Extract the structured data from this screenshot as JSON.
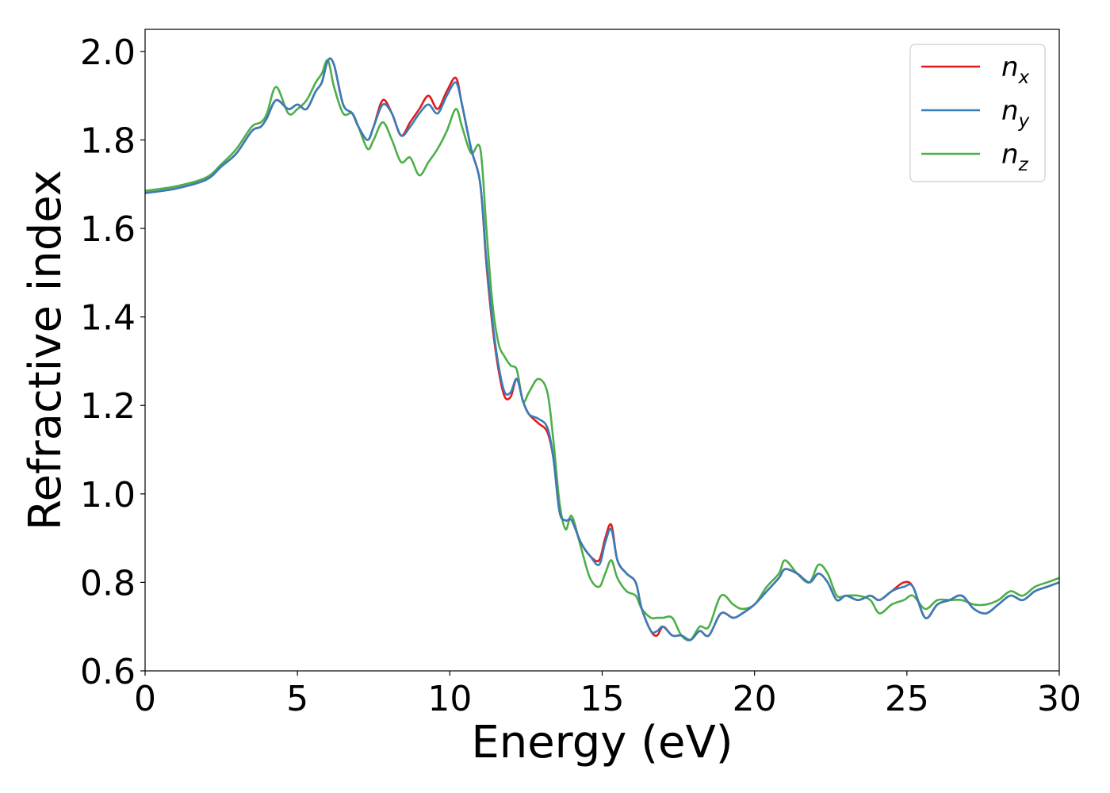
{
  "chart_data": {
    "type": "line",
    "title": "",
    "xlabel": "Energy (eV)",
    "ylabel": "Refractive index",
    "xlim": [
      0,
      30
    ],
    "ylim": [
      0.6,
      2.05
    ],
    "xticks": [
      0,
      5,
      10,
      15,
      20,
      25,
      30
    ],
    "yticks": [
      0.6,
      0.8,
      1.0,
      1.2,
      1.4,
      1.6,
      1.8,
      2.0
    ],
    "xtick_labels": [
      "0",
      "5",
      "10",
      "15",
      "20",
      "25",
      "30"
    ],
    "ytick_labels": [
      "0.6",
      "0.8",
      "1.0",
      "1.2",
      "1.4",
      "1.6",
      "1.8",
      "2.0"
    ],
    "grid": false,
    "legend": {
      "position": "top-right"
    },
    "series": [
      {
        "name": "n_x",
        "legend_main": "n",
        "legend_sub": "x",
        "color": "#e41a1c",
        "x": [
          0,
          1,
          2,
          2.5,
          3,
          3.5,
          3.8,
          4.0,
          4.3,
          4.7,
          5.0,
          5.3,
          5.6,
          5.8,
          6.0,
          6.2,
          6.5,
          6.8,
          7.0,
          7.3,
          7.5,
          7.8,
          8.1,
          8.4,
          8.7,
          9.0,
          9.3,
          9.6,
          9.9,
          10.2,
          10.4,
          10.7,
          11.0,
          11.2,
          11.4,
          11.6,
          11.8,
          12.0,
          12.2,
          12.4,
          12.6,
          12.9,
          13.2,
          13.4,
          13.6,
          13.8,
          14.0,
          14.3,
          14.6,
          14.9,
          15.1,
          15.3,
          15.5,
          15.8,
          16.1,
          16.3,
          16.6,
          16.8,
          17.0,
          17.3,
          17.6,
          17.9,
          18.2,
          18.5,
          18.9,
          19.3,
          19.6,
          20.0,
          20.4,
          20.8,
          21.0,
          21.4,
          21.8,
          22.1,
          22.4,
          22.7,
          23.0,
          23.4,
          23.8,
          24.1,
          24.5,
          24.9,
          25.2,
          25.6,
          26.0,
          26.4,
          26.8,
          27.2,
          27.6,
          28.0,
          28.4,
          28.8,
          29.2,
          29.6,
          30.0
        ],
        "y": [
          1.68,
          1.69,
          1.71,
          1.74,
          1.77,
          1.82,
          1.83,
          1.85,
          1.89,
          1.87,
          1.88,
          1.87,
          1.91,
          1.93,
          1.98,
          1.97,
          1.88,
          1.86,
          1.83,
          1.8,
          1.83,
          1.89,
          1.86,
          1.81,
          1.84,
          1.87,
          1.9,
          1.87,
          1.91,
          1.94,
          1.88,
          1.78,
          1.7,
          1.52,
          1.38,
          1.28,
          1.22,
          1.22,
          1.26,
          1.21,
          1.18,
          1.16,
          1.14,
          1.08,
          0.96,
          0.94,
          0.94,
          0.89,
          0.86,
          0.85,
          0.9,
          0.93,
          0.85,
          0.82,
          0.8,
          0.74,
          0.69,
          0.68,
          0.7,
          0.68,
          0.68,
          0.67,
          0.69,
          0.68,
          0.73,
          0.72,
          0.73,
          0.75,
          0.78,
          0.81,
          0.83,
          0.82,
          0.8,
          0.82,
          0.8,
          0.76,
          0.77,
          0.76,
          0.77,
          0.76,
          0.78,
          0.8,
          0.79,
          0.72,
          0.75,
          0.76,
          0.77,
          0.74,
          0.73,
          0.75,
          0.77,
          0.76,
          0.78,
          0.79,
          0.8
        ]
      },
      {
        "name": "n_y",
        "legend_main": "n",
        "legend_sub": "y",
        "color": "#377eb8",
        "x": [
          0,
          1,
          2,
          2.5,
          3,
          3.5,
          3.8,
          4.0,
          4.3,
          4.7,
          5.0,
          5.3,
          5.6,
          5.8,
          6.0,
          6.2,
          6.5,
          6.8,
          7.0,
          7.3,
          7.5,
          7.8,
          8.1,
          8.4,
          8.7,
          9.0,
          9.3,
          9.6,
          9.9,
          10.2,
          10.4,
          10.7,
          11.0,
          11.2,
          11.4,
          11.6,
          11.8,
          12.0,
          12.2,
          12.4,
          12.6,
          12.9,
          13.2,
          13.4,
          13.6,
          13.8,
          14.0,
          14.3,
          14.6,
          14.9,
          15.1,
          15.3,
          15.5,
          15.8,
          16.1,
          16.3,
          16.6,
          16.8,
          17.0,
          17.3,
          17.6,
          17.9,
          18.2,
          18.5,
          18.9,
          19.3,
          19.6,
          20.0,
          20.4,
          20.8,
          21.0,
          21.4,
          21.8,
          22.1,
          22.4,
          22.7,
          23.0,
          23.4,
          23.8,
          24.1,
          24.5,
          24.9,
          25.2,
          25.6,
          26.0,
          26.4,
          26.8,
          27.2,
          27.6,
          28.0,
          28.4,
          28.8,
          29.2,
          29.6,
          30.0
        ],
        "y": [
          1.68,
          1.69,
          1.71,
          1.74,
          1.77,
          1.82,
          1.83,
          1.85,
          1.89,
          1.87,
          1.88,
          1.87,
          1.91,
          1.93,
          1.98,
          1.97,
          1.88,
          1.86,
          1.83,
          1.8,
          1.83,
          1.88,
          1.86,
          1.81,
          1.83,
          1.86,
          1.88,
          1.86,
          1.9,
          1.93,
          1.88,
          1.78,
          1.7,
          1.53,
          1.39,
          1.29,
          1.23,
          1.23,
          1.26,
          1.21,
          1.18,
          1.17,
          1.15,
          1.08,
          0.96,
          0.94,
          0.94,
          0.89,
          0.86,
          0.84,
          0.89,
          0.92,
          0.85,
          0.82,
          0.8,
          0.74,
          0.69,
          0.69,
          0.7,
          0.68,
          0.68,
          0.67,
          0.69,
          0.68,
          0.73,
          0.72,
          0.73,
          0.75,
          0.78,
          0.81,
          0.83,
          0.82,
          0.8,
          0.82,
          0.8,
          0.76,
          0.77,
          0.76,
          0.77,
          0.76,
          0.78,
          0.79,
          0.79,
          0.72,
          0.75,
          0.76,
          0.77,
          0.74,
          0.73,
          0.75,
          0.77,
          0.76,
          0.78,
          0.79,
          0.8
        ]
      },
      {
        "name": "n_z",
        "legend_main": "n",
        "legend_sub": "z",
        "color": "#4daf4a",
        "x": [
          0,
          1,
          2,
          2.5,
          3,
          3.5,
          3.8,
          4.0,
          4.3,
          4.7,
          5.0,
          5.3,
          5.6,
          5.8,
          6.0,
          6.2,
          6.5,
          6.8,
          7.0,
          7.3,
          7.5,
          7.8,
          8.1,
          8.4,
          8.7,
          9.0,
          9.3,
          9.6,
          9.9,
          10.2,
          10.4,
          10.7,
          11.0,
          11.2,
          11.4,
          11.6,
          11.8,
          12.0,
          12.2,
          12.4,
          12.6,
          12.9,
          13.2,
          13.4,
          13.6,
          13.8,
          14.0,
          14.3,
          14.6,
          14.9,
          15.1,
          15.3,
          15.5,
          15.8,
          16.1,
          16.3,
          16.6,
          16.8,
          17.0,
          17.3,
          17.6,
          17.9,
          18.2,
          18.5,
          18.9,
          19.3,
          19.6,
          20.0,
          20.4,
          20.8,
          21.0,
          21.4,
          21.8,
          22.1,
          22.4,
          22.7,
          23.0,
          23.4,
          23.8,
          24.1,
          24.5,
          24.9,
          25.2,
          25.6,
          26.0,
          26.4,
          26.8,
          27.2,
          27.6,
          28.0,
          28.4,
          28.8,
          29.2,
          29.6,
          30.0
        ],
        "y": [
          1.685,
          1.695,
          1.715,
          1.745,
          1.78,
          1.83,
          1.84,
          1.86,
          1.92,
          1.86,
          1.87,
          1.89,
          1.93,
          1.95,
          1.98,
          1.92,
          1.86,
          1.86,
          1.83,
          1.78,
          1.8,
          1.84,
          1.8,
          1.75,
          1.76,
          1.72,
          1.75,
          1.78,
          1.82,
          1.87,
          1.83,
          1.77,
          1.78,
          1.6,
          1.43,
          1.34,
          1.31,
          1.29,
          1.28,
          1.21,
          1.23,
          1.26,
          1.23,
          1.12,
          0.98,
          0.92,
          0.95,
          0.88,
          0.81,
          0.79,
          0.82,
          0.85,
          0.81,
          0.78,
          0.77,
          0.74,
          0.72,
          0.72,
          0.72,
          0.72,
          0.68,
          0.67,
          0.7,
          0.7,
          0.77,
          0.75,
          0.74,
          0.75,
          0.79,
          0.82,
          0.85,
          0.82,
          0.8,
          0.84,
          0.82,
          0.77,
          0.77,
          0.77,
          0.76,
          0.73,
          0.75,
          0.76,
          0.77,
          0.74,
          0.76,
          0.76,
          0.76,
          0.75,
          0.75,
          0.76,
          0.78,
          0.77,
          0.79,
          0.8,
          0.81
        ]
      }
    ]
  }
}
